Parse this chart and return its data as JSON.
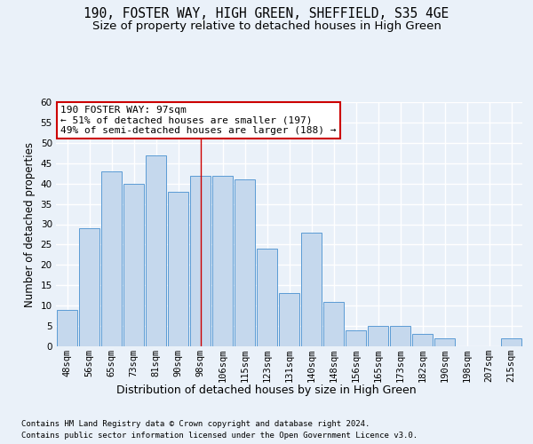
{
  "title1": "190, FOSTER WAY, HIGH GREEN, SHEFFIELD, S35 4GE",
  "title2": "Size of property relative to detached houses in High Green",
  "xlabel": "Distribution of detached houses by size in High Green",
  "ylabel": "Number of detached properties",
  "categories": [
    "48sqm",
    "56sqm",
    "65sqm",
    "73sqm",
    "81sqm",
    "90sqm",
    "98sqm",
    "106sqm",
    "115sqm",
    "123sqm",
    "131sqm",
    "140sqm",
    "148sqm",
    "156sqm",
    "165sqm",
    "173sqm",
    "182sqm",
    "190sqm",
    "198sqm",
    "207sqm",
    "215sqm"
  ],
  "values": [
    9,
    29,
    43,
    40,
    47,
    38,
    42,
    42,
    41,
    24,
    13,
    28,
    11,
    4,
    5,
    5,
    3,
    2,
    0,
    0,
    2
  ],
  "bar_color": "#c5d8ed",
  "bar_edge_color": "#5b9bd5",
  "property_index": 6,
  "annotation_text_line1": "190 FOSTER WAY: 97sqm",
  "annotation_text_line2": "← 51% of detached houses are smaller (197)",
  "annotation_text_line3": "49% of semi-detached houses are larger (188) →",
  "annotation_box_facecolor": "#ffffff",
  "annotation_box_edgecolor": "#cc0000",
  "vline_color": "#cc0000",
  "ylim": [
    0,
    60
  ],
  "yticks": [
    0,
    5,
    10,
    15,
    20,
    25,
    30,
    35,
    40,
    45,
    50,
    55,
    60
  ],
  "footer1": "Contains HM Land Registry data © Crown copyright and database right 2024.",
  "footer2": "Contains public sector information licensed under the Open Government Licence v3.0.",
  "background_color": "#eaf1f9",
  "grid_color": "#ffffff",
  "title_fontsize": 10.5,
  "subtitle_fontsize": 9.5,
  "tick_fontsize": 7.5,
  "ylabel_fontsize": 8.5,
  "xlabel_fontsize": 9,
  "footer_fontsize": 6.5
}
